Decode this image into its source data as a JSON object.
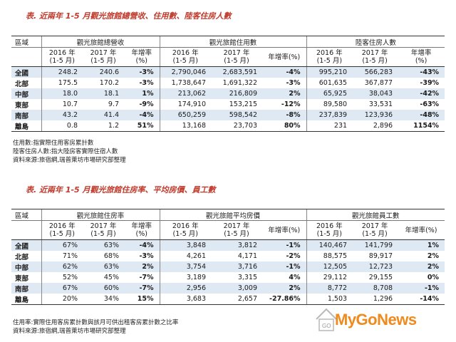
{
  "caption1": "表. 近兩年 1-5 月觀光旅館總營收、住用數、陸客住房人數",
  "table1": {
    "region_header": "區域",
    "groups": [
      "觀光旅館總營收",
      "觀光旅館住用數",
      "陸客住房人數"
    ],
    "sub": {
      "y2016": "2016 年",
      "y2017": "2017 年",
      "period": "(1-5 月)",
      "rate": "年增率",
      "rate_unit": "(%)",
      "rate_pct": "年增率(%)"
    },
    "rows": [
      {
        "region": "全國",
        "v": [
          "248.2",
          "240.6",
          "-3%",
          "2,790,046",
          "2,683,591",
          "-4%",
          "995,210",
          "566,283",
          "-43%"
        ]
      },
      {
        "region": "北部",
        "v": [
          "175.5",
          "170.2",
          "-3%",
          "1,738,647",
          "1,691,322",
          "-3%",
          "601,635",
          "367,877",
          "-39%"
        ]
      },
      {
        "region": "中部",
        "v": [
          "18.0",
          "18.1",
          "1%",
          "213,062",
          "216,809",
          "2%",
          "65,925",
          "38,043",
          "-42%"
        ]
      },
      {
        "region": "東部",
        "v": [
          "10.7",
          "9.7",
          "-9%",
          "174,910",
          "153,215",
          "-12%",
          "89,580",
          "33,531",
          "-63%"
        ]
      },
      {
        "region": "南部",
        "v": [
          "43.2",
          "41.4",
          "-4%",
          "650,259",
          "598,542",
          "-8%",
          "237,839",
          "123,936",
          "-48%"
        ]
      },
      {
        "region": "離島",
        "v": [
          "0.8",
          "1.2",
          "51%",
          "13,168",
          "23,703",
          "80%",
          "231",
          "2,896",
          "1154%"
        ]
      }
    ]
  },
  "notes1": [
    "住用數:指實際住用客房累計數",
    "陸客住房人數:指大陸房客實際住宿人數",
    "資料來源:旅宿網,瑞普萊坊市場研究部整理"
  ],
  "caption2": "表. 近兩年 1-5 月觀光旅館住房率、平均房價、員工數",
  "table2": {
    "region_header": "區域",
    "groups": [
      "觀光旅館住房率",
      "觀光旅館平均房價",
      "觀光旅館員工數"
    ],
    "rows": [
      {
        "region": "全國",
        "v": [
          "67%",
          "63%",
          "-4%",
          "3,848",
          "3,812",
          "-1%",
          "140,467",
          "141,799",
          "1%"
        ]
      },
      {
        "region": "北部",
        "v": [
          "71%",
          "68%",
          "-3%",
          "4,261",
          "4,171",
          "-2%",
          "88,575",
          "89,917",
          "2%"
        ]
      },
      {
        "region": "中部",
        "v": [
          "62%",
          "63%",
          "2%",
          "3,754",
          "3,716",
          "-1%",
          "12,505",
          "12,723",
          "2%"
        ]
      },
      {
        "region": "東部",
        "v": [
          "52%",
          "45%",
          "-7%",
          "3,189",
          "3,315",
          "4%",
          "29,112",
          "29,155",
          "0%"
        ]
      },
      {
        "region": "南部",
        "v": [
          "67%",
          "60%",
          "-7%",
          "2,956",
          "3,009",
          "2%",
          "8,772",
          "8,708",
          "-1%"
        ]
      },
      {
        "region": "離島",
        "v": [
          "20%",
          "34%",
          "15%",
          "3,683",
          "2,657",
          "-27.86%",
          "1,503",
          "1,296",
          "-14%"
        ]
      }
    ]
  },
  "notes2": [
    "住用率:實際住用客房累計數與該月可供出租客房累計數之比率",
    "資料來源:旅宿網,瑞普萊坊市場研究部整理"
  ],
  "watermark": {
    "text": "MyGoNews",
    "color": "#ef8a1d",
    "logo_text": "GO"
  }
}
